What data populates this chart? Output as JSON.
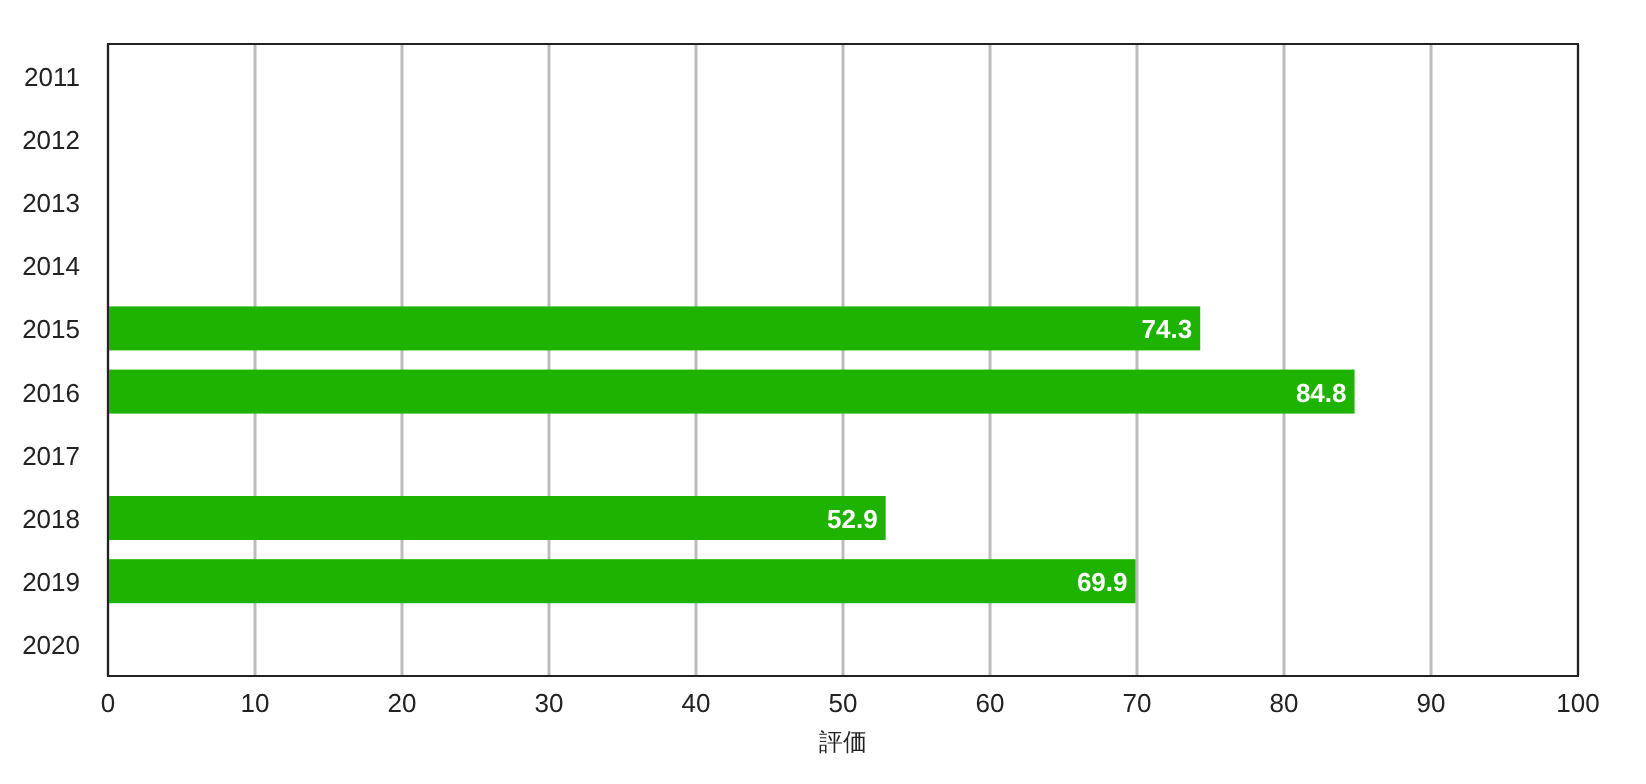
{
  "chart_data": {
    "type": "bar",
    "orientation": "horizontal",
    "xlabel": "評価",
    "categories": [
      "2011",
      "2012",
      "2013",
      "2014",
      "2015",
      "2016",
      "2017",
      "2018",
      "2019",
      "2020"
    ],
    "values": [
      null,
      null,
      null,
      null,
      74.3,
      84.8,
      null,
      52.9,
      69.9,
      null
    ],
    "color": "#1db300",
    "xlim": [
      0,
      100
    ],
    "xticks": [
      0,
      10,
      20,
      30,
      40,
      50,
      60,
      70,
      80,
      90,
      100
    ],
    "grid": "x",
    "data_labels": true
  }
}
